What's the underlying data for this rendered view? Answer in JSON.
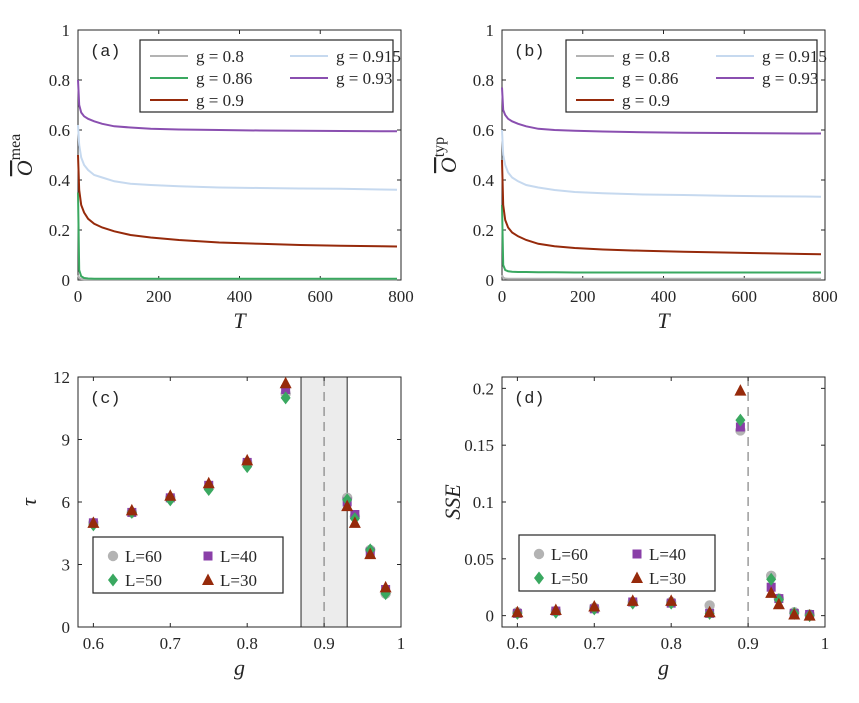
{
  "chart_data": [
    {
      "id": "a",
      "type": "line",
      "panel_label": "(a)",
      "xlabel": "T",
      "ylabel": "O",
      "ylabel_sup": "mea",
      "xlim": [
        0,
        800
      ],
      "ylim": [
        0,
        1
      ],
      "xticks": [
        "0",
        "200",
        "400",
        "600",
        "800"
      ],
      "yticks": [
        "0",
        "0.2",
        "0.4",
        "0.6",
        "0.8",
        "1"
      ],
      "x": [
        0,
        3,
        8,
        15,
        25,
        40,
        60,
        90,
        130,
        180,
        250,
        350,
        450,
        550,
        650,
        750,
        790
      ],
      "series": [
        {
          "name": "g = 0.8",
          "color": "#b3b3b3",
          "values": [
            0.02,
            0.008,
            0.004,
            0.003,
            0.003,
            0.003,
            0.003,
            0.003,
            0.003,
            0.003,
            0.003,
            0.003,
            0.003,
            0.003,
            0.003,
            0.003,
            0.003
          ]
        },
        {
          "name": "g = 0.915",
          "color": "#c6d9ef",
          "values": [
            0.62,
            0.54,
            0.49,
            0.46,
            0.44,
            0.42,
            0.41,
            0.395,
            0.385,
            0.38,
            0.375,
            0.37,
            0.368,
            0.366,
            0.365,
            0.362,
            0.361
          ]
        },
        {
          "name": "g = 0.86",
          "color": "#3aa860",
          "values": [
            0.35,
            0.04,
            0.015,
            0.008,
            0.006,
            0.005,
            0.005,
            0.005,
            0.005,
            0.005,
            0.005,
            0.005,
            0.005,
            0.005,
            0.005,
            0.005,
            0.005
          ]
        },
        {
          "name": "g = 0.93",
          "color": "#8a4fb0",
          "values": [
            0.8,
            0.7,
            0.67,
            0.655,
            0.645,
            0.635,
            0.625,
            0.615,
            0.61,
            0.605,
            0.602,
            0.6,
            0.598,
            0.597,
            0.596,
            0.595,
            0.595
          ]
        },
        {
          "name": "g = 0.9",
          "color": "#962a0b",
          "values": [
            0.5,
            0.36,
            0.3,
            0.27,
            0.245,
            0.225,
            0.21,
            0.195,
            0.18,
            0.17,
            0.16,
            0.15,
            0.145,
            0.14,
            0.137,
            0.135,
            0.134
          ]
        }
      ],
      "legend": "top-right"
    },
    {
      "id": "b",
      "type": "line",
      "panel_label": "(b)",
      "xlabel": "T",
      "ylabel": "O",
      "ylabel_sup": "typ",
      "xlim": [
        0,
        800
      ],
      "ylim": [
        0,
        1
      ],
      "xticks": [
        "0",
        "200",
        "400",
        "600",
        "800"
      ],
      "yticks": [
        "0",
        "0.2",
        "0.4",
        "0.6",
        "0.8",
        "1"
      ],
      "x": [
        0,
        3,
        8,
        15,
        25,
        40,
        60,
        90,
        130,
        180,
        250,
        350,
        450,
        550,
        650,
        750,
        790
      ],
      "series": [
        {
          "name": "g = 0.8",
          "color": "#b3b3b3",
          "values": [
            0.02,
            0.01,
            0.006,
            0.005,
            0.005,
            0.005,
            0.005,
            0.005,
            0.005,
            0.005,
            0.005,
            0.005,
            0.005,
            0.005,
            0.005,
            0.005,
            0.005
          ]
        },
        {
          "name": "g = 0.915",
          "color": "#c6d9ef",
          "values": [
            0.6,
            0.5,
            0.46,
            0.43,
            0.41,
            0.395,
            0.38,
            0.37,
            0.36,
            0.352,
            0.347,
            0.342,
            0.34,
            0.337,
            0.335,
            0.334,
            0.333
          ]
        },
        {
          "name": "g = 0.86",
          "color": "#3aa860",
          "values": [
            0.3,
            0.06,
            0.04,
            0.035,
            0.033,
            0.032,
            0.032,
            0.031,
            0.031,
            0.03,
            0.03,
            0.03,
            0.03,
            0.03,
            0.03,
            0.03,
            0.03
          ]
        },
        {
          "name": "g = 0.93",
          "color": "#8a4fb0",
          "values": [
            0.77,
            0.68,
            0.66,
            0.645,
            0.635,
            0.625,
            0.615,
            0.605,
            0.6,
            0.597,
            0.594,
            0.591,
            0.589,
            0.588,
            0.587,
            0.586,
            0.586
          ]
        },
        {
          "name": "g = 0.9",
          "color": "#962a0b",
          "values": [
            0.48,
            0.3,
            0.24,
            0.21,
            0.19,
            0.175,
            0.16,
            0.145,
            0.135,
            0.128,
            0.122,
            0.117,
            0.113,
            0.11,
            0.107,
            0.104,
            0.103
          ]
        }
      ],
      "legend": "top-right"
    },
    {
      "id": "c",
      "type": "scatter",
      "panel_label": "(c)",
      "xlabel": "g",
      "ylabel": "τ",
      "xlim": [
        0.58,
        1
      ],
      "ylim": [
        0,
        12
      ],
      "xticks": [
        "0.6",
        "0.7",
        "0.8",
        "0.9",
        "1"
      ],
      "yticks": [
        "0",
        "3",
        "6",
        "9",
        "12"
      ],
      "shaded_region": [
        0.87,
        0.93
      ],
      "dashed_line_x": 0.9,
      "series": [
        {
          "name": "L=60",
          "marker": "circle",
          "color": "#b3b3b3",
          "x": [
            0.6,
            0.65,
            0.7,
            0.75,
            0.8,
            0.85,
            0.93,
            0.94,
            0.96,
            0.98
          ],
          "values": [
            5.0,
            5.5,
            6.2,
            6.7,
            7.9,
            11.2,
            6.2,
            5.3,
            3.7,
            1.6
          ]
        },
        {
          "name": "L=40",
          "marker": "square",
          "color": "#8a3fa8",
          "x": [
            0.6,
            0.65,
            0.7,
            0.75,
            0.8,
            0.85,
            0.93,
            0.94,
            0.96,
            0.98
          ],
          "values": [
            5.0,
            5.5,
            6.2,
            6.8,
            7.9,
            11.4,
            6.0,
            5.4,
            3.6,
            1.8
          ]
        },
        {
          "name": "L=50",
          "marker": "diamond",
          "color": "#3aa860",
          "x": [
            0.6,
            0.65,
            0.7,
            0.75,
            0.8,
            0.85,
            0.93,
            0.94,
            0.96,
            0.98
          ],
          "values": [
            4.9,
            5.5,
            6.1,
            6.6,
            7.7,
            11.0,
            6.1,
            5.2,
            3.7,
            1.6
          ]
        },
        {
          "name": "L=30",
          "marker": "triangle",
          "color": "#962a0b",
          "x": [
            0.6,
            0.65,
            0.7,
            0.75,
            0.8,
            0.85,
            0.93,
            0.94,
            0.96,
            0.98
          ],
          "values": [
            5.0,
            5.6,
            6.3,
            6.9,
            8.0,
            11.7,
            5.8,
            5.0,
            3.5,
            1.9
          ]
        }
      ],
      "legend": "bottom-left"
    },
    {
      "id": "d",
      "type": "scatter",
      "panel_label": "(d)",
      "xlabel": "g",
      "ylabel": "SSE",
      "xlim": [
        0.58,
        1
      ],
      "ylim": [
        -0.01,
        0.21
      ],
      "xticks": [
        "0.6",
        "0.7",
        "0.8",
        "0.9",
        "1"
      ],
      "yticks": [
        "0",
        "0.05",
        "0.1",
        "0.15",
        "0.2"
      ],
      "dashed_line_x": 0.9,
      "series": [
        {
          "name": "L=60",
          "marker": "circle",
          "color": "#b3b3b3",
          "x": [
            0.6,
            0.65,
            0.7,
            0.75,
            0.8,
            0.85,
            0.89,
            0.93,
            0.94,
            0.96,
            0.98
          ],
          "values": [
            0.003,
            0.004,
            0.007,
            0.012,
            0.012,
            0.009,
            0.163,
            0.035,
            0.015,
            0.003,
            0.001
          ]
        },
        {
          "name": "L=40",
          "marker": "square",
          "color": "#8a3fa8",
          "x": [
            0.6,
            0.65,
            0.7,
            0.75,
            0.8,
            0.85,
            0.89,
            0.93,
            0.94,
            0.96,
            0.98
          ],
          "values": [
            0.002,
            0.004,
            0.006,
            0.012,
            0.011,
            0.002,
            0.166,
            0.025,
            0.015,
            0.002,
            0.001
          ]
        },
        {
          "name": "L=50",
          "marker": "diamond",
          "color": "#3aa860",
          "x": [
            0.6,
            0.65,
            0.7,
            0.75,
            0.8,
            0.85,
            0.89,
            0.93,
            0.94,
            0.96,
            0.98
          ],
          "values": [
            0.002,
            0.003,
            0.006,
            0.011,
            0.011,
            0.002,
            0.172,
            0.032,
            0.014,
            0.002,
            0.0
          ]
        },
        {
          "name": "L=30",
          "marker": "triangle",
          "color": "#962a0b",
          "x": [
            0.6,
            0.65,
            0.7,
            0.75,
            0.8,
            0.85,
            0.89,
            0.93,
            0.94,
            0.96,
            0.98
          ],
          "values": [
            0.003,
            0.005,
            0.008,
            0.013,
            0.013,
            0.003,
            0.198,
            0.02,
            0.01,
            0.001,
            0.0
          ]
        }
      ],
      "legend": "bottom-left"
    }
  ]
}
